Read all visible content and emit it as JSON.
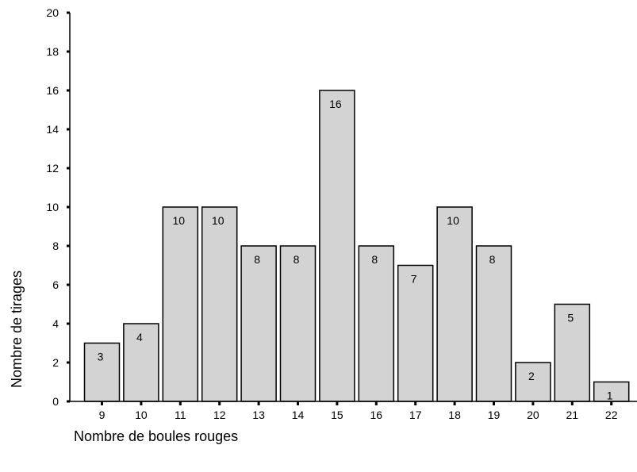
{
  "chart_data": {
    "type": "bar",
    "title": "",
    "xlabel": "Nombre de boules rouges",
    "ylabel": "Nombre de tirages",
    "categories": [
      "9",
      "10",
      "11",
      "12",
      "13",
      "14",
      "15",
      "16",
      "17",
      "18",
      "19",
      "20",
      "21",
      "22"
    ],
    "values": [
      3,
      4,
      10,
      10,
      8,
      8,
      16,
      8,
      7,
      10,
      8,
      2,
      5,
      1
    ],
    "ylim": [
      0,
      20
    ],
    "yticks": [
      0,
      2,
      4,
      6,
      8,
      10,
      12,
      14,
      16,
      18,
      20
    ],
    "data_labels": true,
    "grid": false,
    "colors": {
      "bar_fill": "#d3d3d3",
      "bar_stroke": "#000000",
      "axis": "#000000"
    }
  }
}
